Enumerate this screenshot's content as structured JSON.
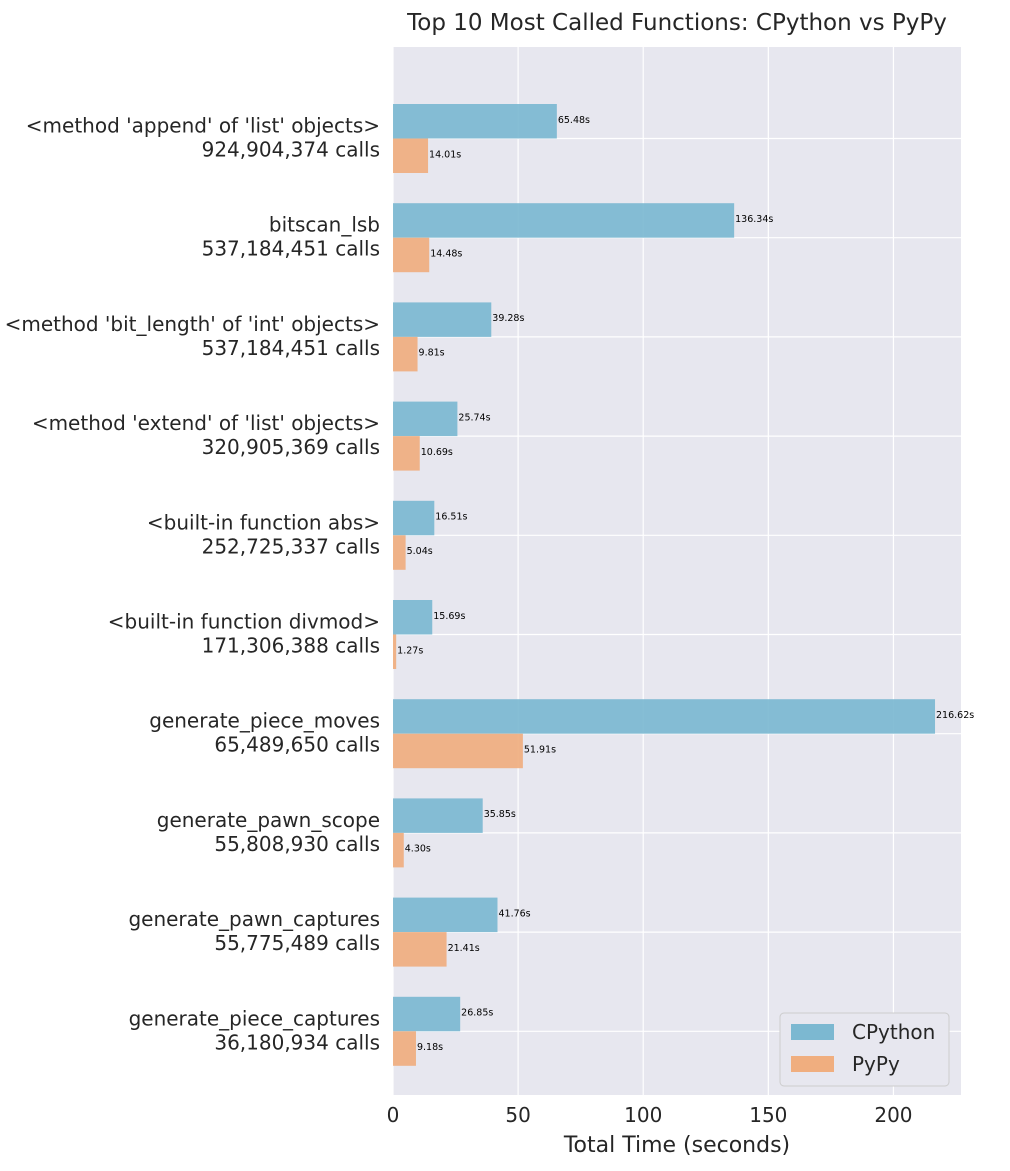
{
  "chart_data": {
    "type": "bar",
    "orientation": "horizontal",
    "title": "Top 10 Most Called Functions: CPython vs PyPy",
    "xlabel": "Total Time (seconds)",
    "ylabel": "",
    "xlim": [
      0,
      227
    ],
    "xticks": [
      0,
      50,
      100,
      150,
      200
    ],
    "grid": true,
    "legend_position": "lower-right",
    "categories": [
      {
        "name": "<method 'append' of 'list' objects>",
        "calls": "924,904,374 calls"
      },
      {
        "name": "bitscan_lsb",
        "calls": "537,184,451 calls"
      },
      {
        "name": "<method 'bit_length' of 'int' objects>",
        "calls": "537,184,451 calls"
      },
      {
        "name": "<method 'extend' of 'list' objects>",
        "calls": "320,905,369 calls"
      },
      {
        "name": "<built-in function abs>",
        "calls": "252,725,337 calls"
      },
      {
        "name": "<built-in function divmod>",
        "calls": "171,306,388 calls"
      },
      {
        "name": "generate_piece_moves",
        "calls": "65,489,650 calls"
      },
      {
        "name": "generate_pawn_scope",
        "calls": "55,808,930 calls"
      },
      {
        "name": "generate_pawn_captures",
        "calls": "55,775,489 calls"
      },
      {
        "name": "generate_piece_captures",
        "calls": "36,180,934 calls"
      }
    ],
    "series": [
      {
        "name": "CPython",
        "color": "#7cb8d1",
        "values": [
          65.48,
          136.34,
          39.28,
          25.74,
          16.51,
          15.69,
          216.62,
          35.85,
          41.76,
          26.85
        ],
        "labels": [
          "65.48s",
          "136.34s",
          "39.28s",
          "25.74s",
          "16.51s",
          "15.69s",
          "216.62s",
          "35.85s",
          "41.76s",
          "26.85s"
        ]
      },
      {
        "name": "PyPy",
        "color": "#f0ae7f",
        "values": [
          14.01,
          14.48,
          9.81,
          10.69,
          5.04,
          1.27,
          51.91,
          4.3,
          21.41,
          9.18
        ],
        "labels": [
          "14.01s",
          "14.48s",
          "9.81s",
          "10.69s",
          "5.04s",
          "1.27s",
          "51.91s",
          "4.30s",
          "21.41s",
          "9.18s"
        ]
      }
    ],
    "background_color": "#e7e7ef",
    "grid_color": "#ffffff"
  }
}
